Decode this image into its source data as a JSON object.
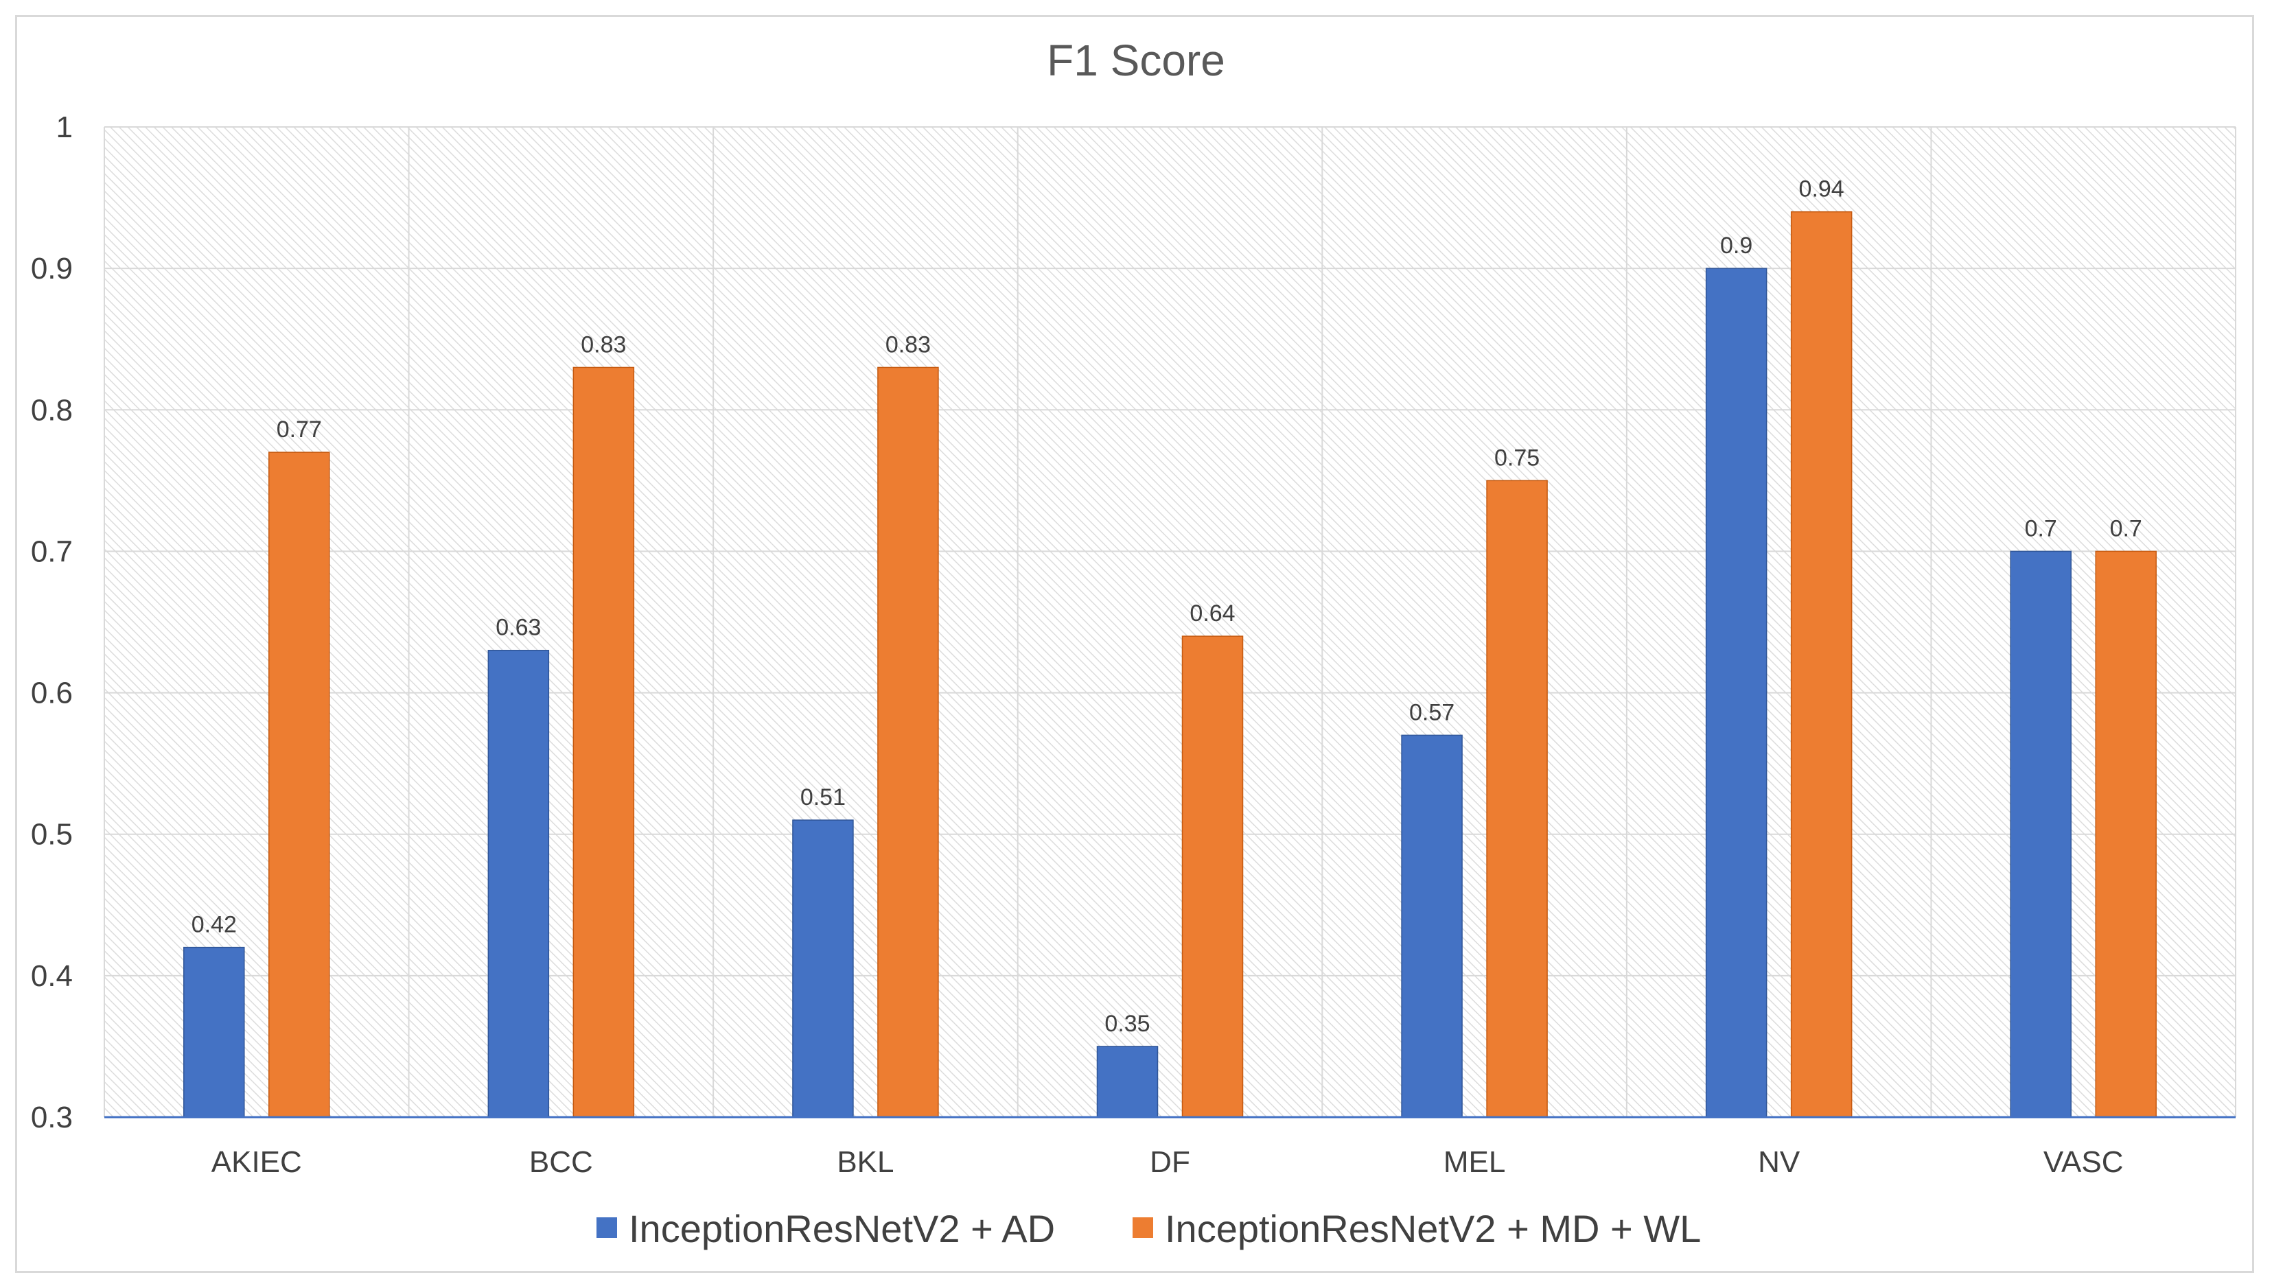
{
  "chart_data": {
    "type": "bar",
    "title": "F1 Score",
    "xlabel": "",
    "ylabel": "",
    "categories": [
      "AKIEC",
      "BCC",
      "BKL",
      "DF",
      "MEL",
      "NV",
      "VASC"
    ],
    "series": [
      {
        "name": "InceptionResNetV2 + AD",
        "color": "#4472C4",
        "values": [
          0.42,
          0.63,
          0.51,
          0.35,
          0.57,
          0.9,
          0.7
        ]
      },
      {
        "name": "InceptionResNetV2 + MD + WL",
        "color": "#ED7D31",
        "values": [
          0.77,
          0.83,
          0.83,
          0.64,
          0.75,
          0.94,
          0.7
        ]
      }
    ],
    "ylim": [
      0.3,
      1
    ],
    "yticks": [
      "0.3",
      "0.4",
      "0.5",
      "0.6",
      "0.7",
      "0.8",
      "0.9",
      "1"
    ],
    "data_labels": [
      [
        "0.42",
        "0.63",
        "0.51",
        "0.35",
        "0.57",
        "0.9",
        "0.7"
      ],
      [
        "0.77",
        "0.83",
        "0.83",
        "0.64",
        "0.75",
        "0.94",
        "0.7"
      ]
    ],
    "grid": true,
    "legend_position": "bottom"
  }
}
